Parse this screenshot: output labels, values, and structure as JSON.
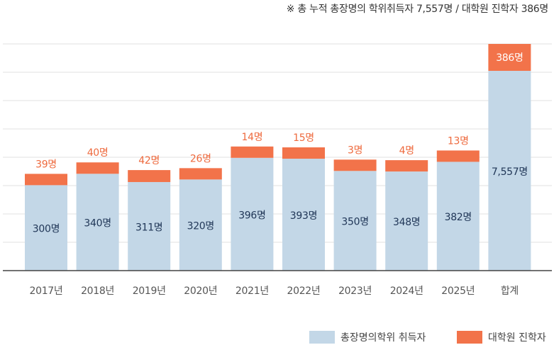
{
  "note": "※ 총 누적 총장명의 학위취득자 7,557명 / 대학원 진학자 386명",
  "chart_data": {
    "type": "bar",
    "stacked": true,
    "categories": [
      "2017년",
      "2018년",
      "2019년",
      "2020년",
      "2021년",
      "2022년",
      "2023년",
      "2024년",
      "2025년",
      "합계"
    ],
    "series": [
      {
        "name": "총장명의학위 취득자",
        "color": "#c3d7e7",
        "values": [
          300,
          340,
          311,
          320,
          396,
          393,
          350,
          348,
          382,
          7557
        ],
        "labels": [
          "300명",
          "340명",
          "311명",
          "320명",
          "396명",
          "393명",
          "350명",
          "348명",
          "382명",
          "7,557명"
        ]
      },
      {
        "name": "대학원 진학자",
        "color": "#f2734a",
        "values": [
          39,
          40,
          42,
          26,
          14,
          15,
          3,
          4,
          13,
          386
        ],
        "labels": [
          "39명",
          "40명",
          "42명",
          "26명",
          "14명",
          "15명",
          "3명",
          "4명",
          "13명",
          "386명"
        ]
      }
    ],
    "grid": true,
    "legend": "bottom-right"
  }
}
